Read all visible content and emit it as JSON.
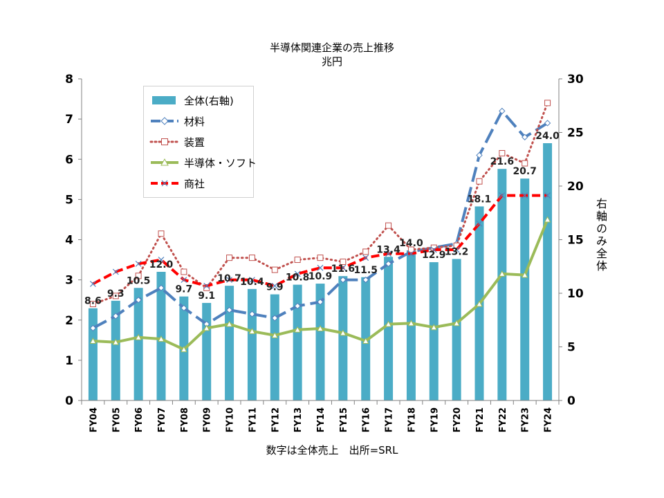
{
  "title": "半導体関連企業の売上推移",
  "unit": "兆円",
  "footer": "数字は全体売上　出所=SRL",
  "colors": {
    "total": "#4bacc6",
    "material": "#4f81bd",
    "equipment": "#c0504d",
    "semi_soft": "#9bbb59",
    "trading": "#ff0000"
  },
  "chart_data": {
    "type": "bar+line",
    "categories": [
      "FY04",
      "FY05",
      "FY06",
      "FY07",
      "FY08",
      "FY09",
      "FY10",
      "FY11",
      "FY12",
      "FY13",
      "FY14",
      "FY15",
      "FY16",
      "FY17",
      "FY18",
      "FY19",
      "FY20",
      "FY21",
      "FY22",
      "FY23",
      "FY24"
    ],
    "y_left": {
      "min": 0,
      "max": 8,
      "ticks": [
        0,
        1,
        2,
        3,
        4,
        5,
        6,
        7,
        8
      ]
    },
    "y_right": {
      "min": 0,
      "max": 30,
      "ticks": [
        0,
        5,
        10,
        15,
        20,
        25,
        30
      ],
      "label": "右軸のみ全体"
    },
    "series": [
      {
        "key": "total",
        "name": "全体(右軸)",
        "type": "bar",
        "axis": "right",
        "values": [
          8.6,
          9.3,
          10.5,
          12.0,
          9.7,
          9.1,
          10.7,
          10.4,
          9.9,
          10.8,
          10.9,
          11.6,
          11.5,
          13.4,
          14.0,
          12.9,
          13.2,
          18.1,
          21.6,
          20.7,
          24.0
        ],
        "labels": [
          "8.6",
          "9.3",
          "10.5",
          "12.0",
          "9.7",
          "9.1",
          "10.7",
          "10.4",
          "9.9",
          "10.8",
          "10.9",
          "11.6",
          "11.5",
          "13,4",
          "14.0",
          "12.9",
          "13.2",
          "18.1",
          "21.6",
          "20.7",
          "24.0"
        ]
      },
      {
        "key": "material",
        "name": "材料",
        "type": "line",
        "axis": "left",
        "marker": "diamond",
        "values": [
          1.8,
          2.1,
          2.5,
          2.8,
          2.3,
          1.9,
          2.25,
          2.15,
          2.05,
          2.35,
          2.45,
          3.0,
          3.0,
          3.4,
          3.7,
          3.8,
          3.9,
          6.1,
          7.2,
          6.55,
          6.9
        ]
      },
      {
        "key": "equipment",
        "name": "装置",
        "type": "line",
        "axis": "left",
        "marker": "square",
        "values": [
          2.4,
          2.6,
          3.1,
          4.15,
          3.2,
          2.8,
          3.55,
          3.55,
          3.25,
          3.5,
          3.55,
          3.45,
          3.7,
          4.35,
          3.75,
          3.8,
          3.85,
          5.45,
          6.15,
          5.9,
          7.4
        ]
      },
      {
        "key": "semi_soft",
        "name": "半導体・ソフト",
        "type": "line",
        "axis": "left",
        "marker": "triangle",
        "values": [
          1.48,
          1.45,
          1.57,
          1.53,
          1.27,
          1.8,
          1.9,
          1.72,
          1.62,
          1.76,
          1.79,
          1.68,
          1.48,
          1.9,
          1.92,
          1.82,
          1.92,
          2.4,
          3.15,
          3.12,
          4.5
        ]
      },
      {
        "key": "trading",
        "name": "商社",
        "type": "line",
        "axis": "left",
        "marker": "x",
        "values": [
          2.9,
          3.2,
          3.4,
          3.5,
          3.0,
          2.85,
          3.0,
          3.0,
          2.85,
          3.15,
          3.3,
          3.3,
          3.55,
          3.65,
          3.65,
          3.75,
          3.75,
          4.4,
          5.1,
          5.1,
          5.1
        ]
      }
    ]
  }
}
